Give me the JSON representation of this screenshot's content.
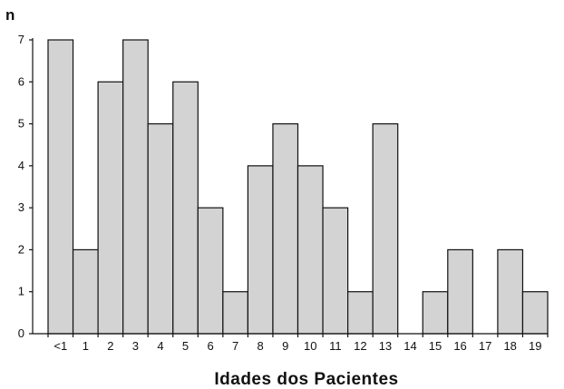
{
  "chart_data": {
    "type": "bar",
    "title": "",
    "ylabel": "n",
    "xlabel": "Idades dos Pacientes",
    "categories": [
      "<1",
      "1",
      "2",
      "3",
      "4",
      "5",
      "6",
      "7",
      "8",
      "9",
      "10",
      "11",
      "12",
      "13",
      "14",
      "15",
      "16",
      "17",
      "18",
      "19"
    ],
    "values": [
      7,
      2,
      6,
      7,
      5,
      6,
      3,
      1,
      4,
      5,
      4,
      3,
      1,
      5,
      0,
      1,
      2,
      0,
      2,
      1
    ],
    "ylim": [
      0,
      7
    ],
    "yticks": [
      0,
      1,
      2,
      3,
      4,
      5,
      6,
      7
    ],
    "grid": false,
    "bar_fill": "#d3d3d3",
    "bar_stroke": "#111111"
  }
}
